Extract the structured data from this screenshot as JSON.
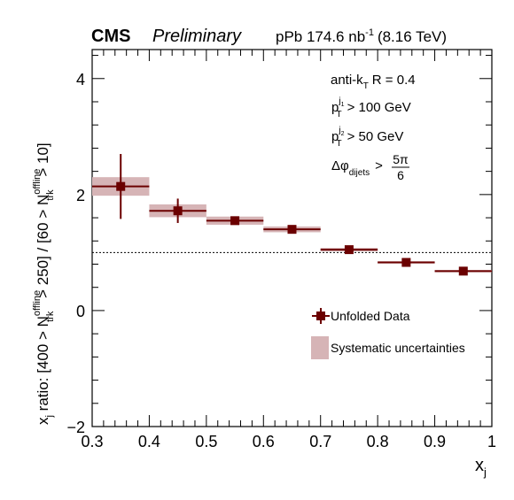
{
  "header": {
    "cms_label": "CMS",
    "preliminary_label": "Preliminary",
    "dataset_label": "pPb 174.6 nb",
    "dataset_exp": "-1",
    "energy_label": "(8.16 TeV)"
  },
  "annotations": {
    "algo_prefix": "anti-k",
    "algo_sub": "T",
    "algo_suffix": "R = 0.4",
    "pt1_p": "p",
    "pt1_sup": "j",
    "pt1_sup_sub": "1",
    "pt1_sub": "T",
    "pt1_cut": "> 100 GeV",
    "pt2_p": "p",
    "pt2_sup": "j",
    "pt2_sup_sub": "2",
    "pt2_sub": "T",
    "pt2_cut": "> 50 GeV",
    "dphi_symbol": "Δφ",
    "dphi_sub": "dijets",
    "dphi_gt": ">",
    "dphi_num": "5π",
    "dphi_den": "6"
  },
  "chart_data": {
    "type": "scatter",
    "xlabel": "x",
    "xlabel_sub": "j",
    "ylabel": {
      "p1": "x",
      "p1_sub": "j",
      "p2": " ratio: [400 > N",
      "sup1": "offline",
      "sub1": "trk",
      "p3": " > 250] / [60 > N",
      "sup2": "offline",
      "sub2": "trk",
      "p4": " > 10]"
    },
    "xlim": [
      0.3,
      1.0
    ],
    "ylim": [
      -2,
      4.5
    ],
    "x_ticks": [
      "0.3",
      "0.4",
      "0.5",
      "0.6",
      "0.7",
      "0.8",
      "0.9",
      "1"
    ],
    "x_tick_values": [
      0.3,
      0.4,
      0.5,
      0.6,
      0.7,
      0.8,
      0.9,
      1.0
    ],
    "y_ticks": [
      "−2",
      "0",
      "2",
      "4"
    ],
    "y_tick_values": [
      -2,
      0,
      2,
      4
    ],
    "reference_line_y": 1.0,
    "series": [
      {
        "name": "Unfolded Data",
        "color": "#6b0000",
        "points": [
          {
            "x": 0.35,
            "y": 2.14,
            "x_low": 0.3,
            "x_high": 0.4,
            "y_err": 0.56,
            "sys_err": 0.16
          },
          {
            "x": 0.45,
            "y": 1.72,
            "x_low": 0.4,
            "x_high": 0.5,
            "y_err": 0.21,
            "sys_err": 0.11
          },
          {
            "x": 0.55,
            "y": 1.55,
            "x_low": 0.5,
            "x_high": 0.6,
            "y_err": 0.07,
            "sys_err": 0.07
          },
          {
            "x": 0.65,
            "y": 1.4,
            "x_low": 0.6,
            "x_high": 0.7,
            "y_err": 0.05,
            "sys_err": 0.05
          },
          {
            "x": 0.75,
            "y": 1.05,
            "x_low": 0.7,
            "x_high": 0.8,
            "y_err": 0.02,
            "sys_err": 0.03
          },
          {
            "x": 0.85,
            "y": 0.83,
            "x_low": 0.8,
            "x_high": 0.9,
            "y_err": 0.02,
            "sys_err": 0.02
          },
          {
            "x": 0.95,
            "y": 0.68,
            "x_low": 0.9,
            "x_high": 1.0,
            "y_err": 0.02,
            "sys_err": 0.02
          }
        ]
      }
    ],
    "legend": {
      "placement": "bottom-right",
      "data_label": "Unfolded Data",
      "sys_label": "Systematic uncertainties"
    },
    "colors": {
      "marker": "#6b0000",
      "sys_box": "#d6b4b6",
      "reference_line": "#000000"
    }
  }
}
